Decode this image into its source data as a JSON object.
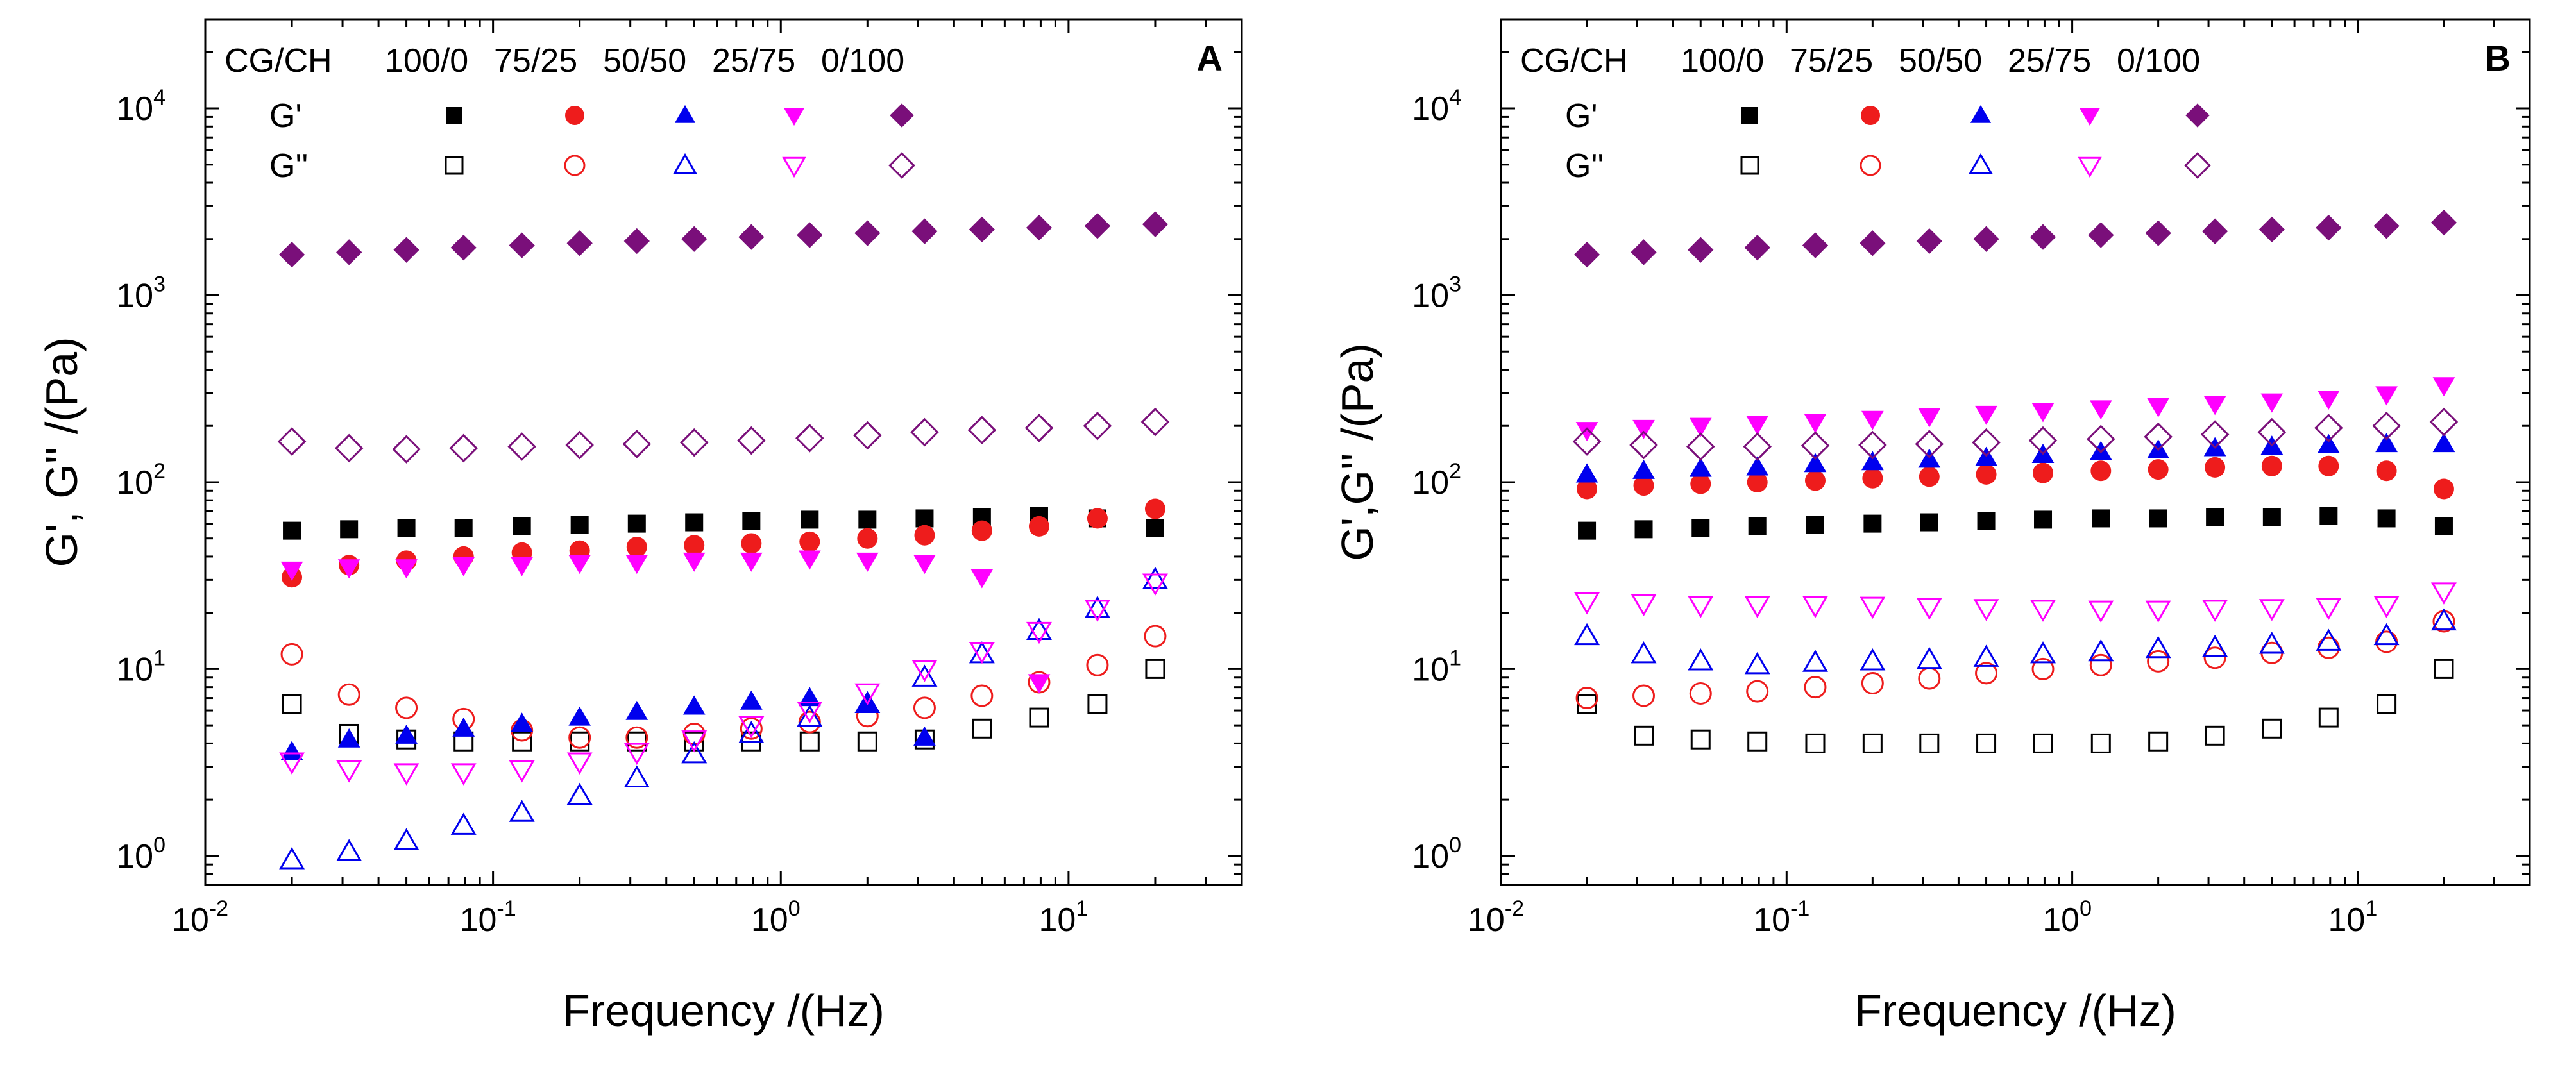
{
  "chart_data": [
    {
      "type": "scatter",
      "panel_label": "A",
      "xlabel": "Frequency /(Hz)",
      "ylabel": "G', G'' /(Pa)",
      "xscale": "log",
      "yscale": "log",
      "xlim": [
        0.01,
        40
      ],
      "ylim": [
        0.7,
        30000
      ],
      "xticks": [
        {
          "base": "10",
          "exp": "-2"
        },
        {
          "base": "10",
          "exp": "-1"
        },
        {
          "base": "10",
          "exp": "0"
        },
        {
          "base": "10",
          "exp": "1"
        }
      ],
      "yticks": [
        {
          "base": "10",
          "exp": "0"
        },
        {
          "base": "10",
          "exp": "1"
        },
        {
          "base": "10",
          "exp": "2"
        },
        {
          "base": "10",
          "exp": "3"
        },
        {
          "base": "10",
          "exp": "4"
        }
      ],
      "x": [
        0.02,
        0.0316,
        0.05,
        0.079,
        0.126,
        0.2,
        0.316,
        0.5,
        0.79,
        1.26,
        2.0,
        3.16,
        5.0,
        7.9,
        12.6,
        20
      ],
      "legend": {
        "header": "CG/CH",
        "row_storage": "G'",
        "row_loss": "G''",
        "position": "top-left"
      },
      "series": [
        {
          "name": "100/0",
          "color": "#000000",
          "shape": "square",
          "storage": [
            55,
            56,
            57,
            57,
            58,
            59,
            60,
            61,
            62,
            63,
            63,
            64,
            65,
            66,
            64,
            57
          ],
          "loss": [
            6.5,
            4.5,
            4.2,
            4.1,
            4.1,
            4.1,
            4.1,
            4.1,
            4.1,
            4.1,
            4.1,
            4.2,
            4.8,
            5.5,
            6.5,
            10
          ]
        },
        {
          "name": "75/25",
          "color": "#ee1c1c",
          "shape": "circle",
          "storage": [
            31,
            36,
            38,
            40,
            42,
            43,
            45,
            46,
            47,
            48,
            50,
            52,
            55,
            58,
            64,
            72
          ],
          "loss": [
            12,
            7.3,
            6.2,
            5.4,
            4.7,
            4.3,
            4.3,
            4.5,
            4.8,
            5.2,
            5.6,
            6.2,
            7.2,
            8.5,
            10.5,
            15
          ]
        },
        {
          "name": "50/50",
          "color": "#0000ee",
          "shape": "triangle-up",
          "storage": [
            3.6,
            4.2,
            4.4,
            4.8,
            5.1,
            5.5,
            5.9,
            6.3,
            6.7,
            7.0,
            6.5,
            4.3,
            null,
            null,
            null,
            null
          ],
          "loss": [
            0.95,
            1.05,
            1.2,
            1.45,
            1.7,
            2.1,
            2.6,
            3.5,
            4.5,
            5.5,
            6.5,
            9.0,
            12,
            16,
            21,
            30
          ]
        },
        {
          "name": "25/75",
          "color": "#ff00ff",
          "shape": "triangle-down",
          "storage": [
            34,
            35,
            35,
            36,
            36,
            37,
            37,
            38,
            38,
            39,
            38,
            37,
            31,
            8.5,
            null,
            null
          ],
          "loss": [
            3.2,
            2.9,
            2.8,
            2.8,
            2.9,
            3.2,
            3.6,
            4.2,
            5.0,
            6.0,
            7.5,
            10,
            12.5,
            16,
            21,
            29
          ]
        },
        {
          "name": "0/100",
          "color": "#7a0f7a",
          "shape": "diamond",
          "storage": [
            1650,
            1700,
            1750,
            1800,
            1850,
            1900,
            1950,
            2000,
            2050,
            2100,
            2150,
            2200,
            2250,
            2300,
            2350,
            2400
          ],
          "loss": [
            165,
            152,
            150,
            152,
            155,
            158,
            160,
            163,
            167,
            172,
            178,
            185,
            190,
            195,
            200,
            210
          ]
        }
      ]
    },
    {
      "type": "scatter",
      "panel_label": "B",
      "xlabel": "Frequency /(Hz)",
      "ylabel": "G',G'' /(Pa)",
      "xscale": "log",
      "yscale": "log",
      "xlim": [
        0.01,
        40
      ],
      "ylim": [
        0.7,
        30000
      ],
      "xticks": [
        {
          "base": "10",
          "exp": "-2"
        },
        {
          "base": "10",
          "exp": "-1"
        },
        {
          "base": "10",
          "exp": "0"
        },
        {
          "base": "10",
          "exp": "1"
        }
      ],
      "yticks": [
        {
          "base": "10",
          "exp": "0"
        },
        {
          "base": "10",
          "exp": "1"
        },
        {
          "base": "10",
          "exp": "2"
        },
        {
          "base": "10",
          "exp": "3"
        },
        {
          "base": "10",
          "exp": "4"
        }
      ],
      "x": [
        0.02,
        0.0316,
        0.05,
        0.079,
        0.126,
        0.2,
        0.316,
        0.5,
        0.79,
        1.26,
        2.0,
        3.16,
        5.0,
        7.9,
        12.6,
        20
      ],
      "legend": {
        "header": "CG/CH",
        "row_storage": "G'",
        "row_loss": "G''",
        "position": "top-left"
      },
      "series": [
        {
          "name": "100/0",
          "color": "#000000",
          "shape": "square",
          "storage": [
            55,
            56,
            57,
            58,
            59,
            60,
            61,
            62,
            63,
            64,
            64,
            65,
            65,
            66,
            64,
            58
          ],
          "loss": [
            6.5,
            4.4,
            4.2,
            4.1,
            4.0,
            4.0,
            4.0,
            4.0,
            4.0,
            4.0,
            4.1,
            4.4,
            4.8,
            5.5,
            6.5,
            10
          ]
        },
        {
          "name": "75/25",
          "color": "#ee1c1c",
          "shape": "circle",
          "storage": [
            92,
            96,
            98,
            100,
            102,
            105,
            107,
            110,
            112,
            115,
            117,
            120,
            122,
            122,
            115,
            92
          ],
          "loss": [
            7.0,
            7.2,
            7.4,
            7.6,
            8.0,
            8.4,
            8.9,
            9.5,
            10,
            10.5,
            11,
            11.5,
            12.2,
            13,
            14,
            18
          ]
        },
        {
          "name": "50/50",
          "color": "#0000ee",
          "shape": "triangle-up",
          "storage": [
            110,
            115,
            118,
            120,
            125,
            128,
            132,
            135,
            140,
            145,
            148,
            152,
            155,
            158,
            160,
            160
          ],
          "loss": [
            15,
            12,
            11,
            10.5,
            10.8,
            11,
            11.2,
            11.5,
            12,
            12.3,
            12.8,
            13,
            13.5,
            14,
            15,
            18
          ]
        },
        {
          "name": "25/75",
          "color": "#ff00ff",
          "shape": "triangle-down",
          "storage": [
            190,
            195,
            200,
            205,
            210,
            218,
            225,
            232,
            240,
            248,
            255,
            262,
            270,
            280,
            295,
            330
          ],
          "loss": [
            23,
            22.5,
            22,
            22,
            22,
            21.8,
            21.5,
            21.2,
            21,
            20.8,
            20.8,
            21,
            21.2,
            21.5,
            22,
            26
          ]
        },
        {
          "name": "0/100",
          "color": "#7a0f7a",
          "shape": "diamond",
          "storage": [
            1650,
            1700,
            1750,
            1800,
            1850,
            1900,
            1950,
            2000,
            2050,
            2100,
            2150,
            2200,
            2250,
            2300,
            2350,
            2450
          ],
          "loss": [
            165,
            158,
            155,
            155,
            157,
            158,
            160,
            163,
            167,
            170,
            175,
            180,
            185,
            195,
            200,
            210
          ]
        }
      ]
    }
  ]
}
